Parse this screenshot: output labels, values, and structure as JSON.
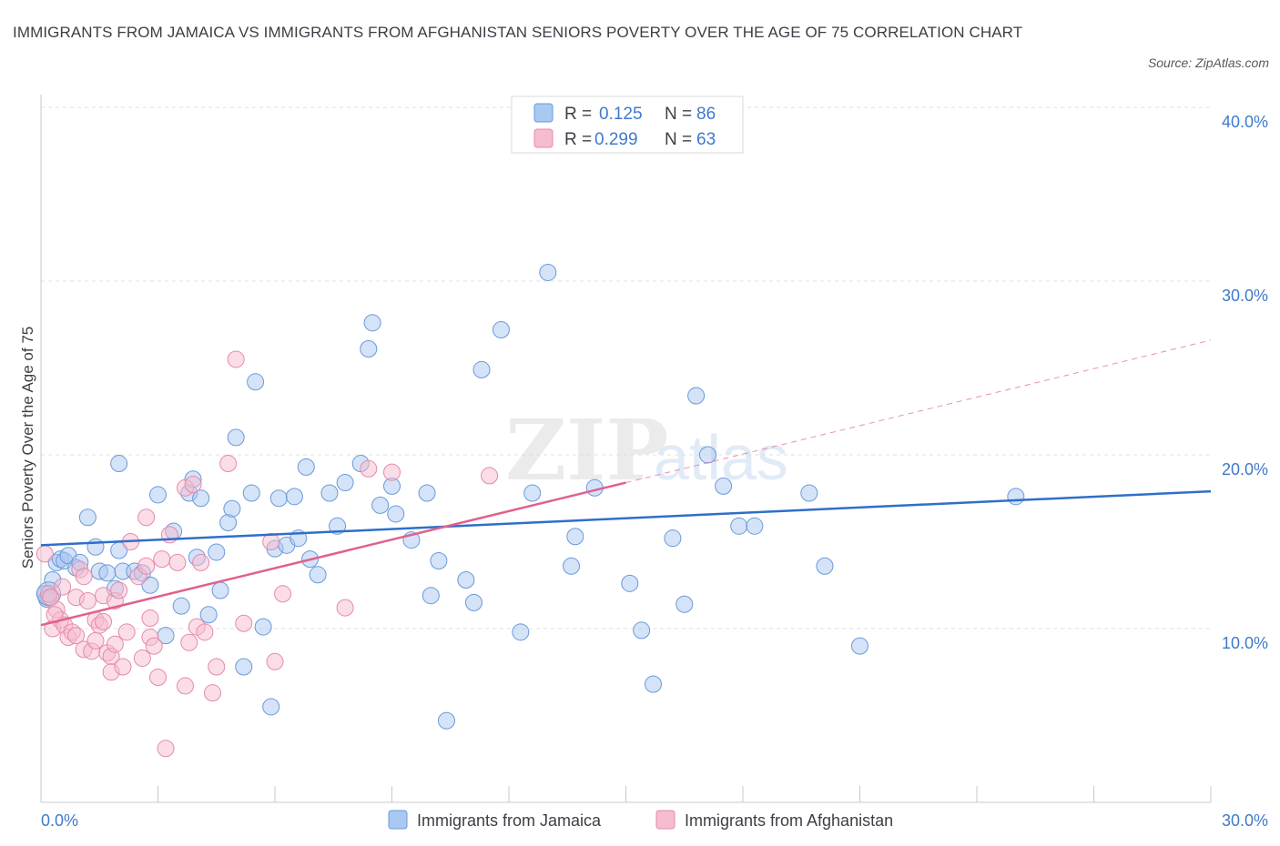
{
  "title": "IMMIGRANTS FROM JAMAICA VS IMMIGRANTS FROM AFGHANISTAN SENIORS POVERTY OVER THE AGE OF 75 CORRELATION CHART",
  "source": "Source: ZipAtlas.com",
  "legend": {
    "r_label": "R =",
    "n_label": "N =",
    "rows": [
      {
        "r": "0.125",
        "n": "86",
        "color": "#a9c8f2"
      },
      {
        "r": "0.299",
        "n": "63",
        "color": "#f6bccf"
      }
    ]
  },
  "chart_data": {
    "type": "scatter",
    "title": "IMMIGRANTS FROM JAMAICA VS IMMIGRANTS FROM AFGHANISTAN SENIORS POVERTY OVER THE AGE OF 75 CORRELATION CHART",
    "xlabel": "",
    "ylabel": "Seniors Poverty Over the Age of 75",
    "xlim": [
      0,
      30
    ],
    "ylim": [
      0,
      40
    ],
    "y_ticks": [
      "10.0%",
      "20.0%",
      "30.0%",
      "40.0%"
    ],
    "y_tick_values": [
      10,
      20,
      30,
      40
    ],
    "x_ticks": [
      "0.0%",
      "30.0%"
    ],
    "x_tick_values": [
      0,
      30
    ],
    "grid": true,
    "legend_position": "top-center",
    "watermark": "ZIPatlas",
    "series": [
      {
        "name": "Immigrants from Jamaica",
        "color": "#a9c8f2",
        "stroke": "#6a9ad8",
        "line_color": "#2f6fc8",
        "trend": {
          "x": [
            0,
            30
          ],
          "y": [
            14.8,
            17.9
          ],
          "dashed_after": null
        },
        "points": [
          [
            0.1,
            12.0
          ],
          [
            0.2,
            11.8
          ],
          [
            0.3,
            12.8
          ],
          [
            0.4,
            13.8
          ],
          [
            0.5,
            14.0
          ],
          [
            0.6,
            13.9
          ],
          [
            0.7,
            14.2
          ],
          [
            0.9,
            13.5
          ],
          [
            1.2,
            16.4
          ],
          [
            1.4,
            14.7
          ],
          [
            1.5,
            13.3
          ],
          [
            1.7,
            13.2
          ],
          [
            1.9,
            12.3
          ],
          [
            2.0,
            19.5
          ],
          [
            2.0,
            14.5
          ],
          [
            2.1,
            13.3
          ],
          [
            2.4,
            13.3
          ],
          [
            2.6,
            13.2
          ],
          [
            2.8,
            12.5
          ],
          [
            3.0,
            17.7
          ],
          [
            3.2,
            9.6
          ],
          [
            3.4,
            15.6
          ],
          [
            3.6,
            11.3
          ],
          [
            3.8,
            17.8
          ],
          [
            3.9,
            18.6
          ],
          [
            4.0,
            14.1
          ],
          [
            4.1,
            17.5
          ],
          [
            4.3,
            10.8
          ],
          [
            4.5,
            14.4
          ],
          [
            4.6,
            12.2
          ],
          [
            4.8,
            16.1
          ],
          [
            4.9,
            16.9
          ],
          [
            5.0,
            21.0
          ],
          [
            5.2,
            7.8
          ],
          [
            5.4,
            17.8
          ],
          [
            5.5,
            24.2
          ],
          [
            5.7,
            10.1
          ],
          [
            5.9,
            5.5
          ],
          [
            6.0,
            14.6
          ],
          [
            6.1,
            17.5
          ],
          [
            6.3,
            14.8
          ],
          [
            6.5,
            17.6
          ],
          [
            6.6,
            15.2
          ],
          [
            6.8,
            19.3
          ],
          [
            6.9,
            14.0
          ],
          [
            7.1,
            13.1
          ],
          [
            7.4,
            17.8
          ],
          [
            7.6,
            15.9
          ],
          [
            7.8,
            18.4
          ],
          [
            8.2,
            19.5
          ],
          [
            8.4,
            26.1
          ],
          [
            8.5,
            27.6
          ],
          [
            8.7,
            17.1
          ],
          [
            9.0,
            18.2
          ],
          [
            9.1,
            16.6
          ],
          [
            9.5,
            15.1
          ],
          [
            9.9,
            17.8
          ],
          [
            10.0,
            11.9
          ],
          [
            10.2,
            13.9
          ],
          [
            10.4,
            4.7
          ],
          [
            10.9,
            12.8
          ],
          [
            11.1,
            11.5
          ],
          [
            11.3,
            24.9
          ],
          [
            11.8,
            27.2
          ],
          [
            12.3,
            9.8
          ],
          [
            12.6,
            17.8
          ],
          [
            13.0,
            30.5
          ],
          [
            13.6,
            13.6
          ],
          [
            13.7,
            15.3
          ],
          [
            14.2,
            18.1
          ],
          [
            15.1,
            12.6
          ],
          [
            15.4,
            9.9
          ],
          [
            15.7,
            6.8
          ],
          [
            16.2,
            15.2
          ],
          [
            16.5,
            11.4
          ],
          [
            16.8,
            23.4
          ],
          [
            17.1,
            20.0
          ],
          [
            17.5,
            18.2
          ],
          [
            17.9,
            15.9
          ],
          [
            18.3,
            15.9
          ],
          [
            19.7,
            17.8
          ],
          [
            20.1,
            13.6
          ],
          [
            21.0,
            9.0
          ],
          [
            25.0,
            17.6
          ],
          [
            0.15,
            11.7
          ],
          [
            1.0,
            13.8
          ]
        ]
      },
      {
        "name": "Immigrants from Afghanistan",
        "color": "#f6bccf",
        "stroke": "#e58aa9",
        "line_color": "#e0608e",
        "trend": {
          "x": [
            0,
            15
          ],
          "y": [
            10.2,
            18.4
          ],
          "dashed_until": [
            30,
            26.6
          ]
        },
        "points": [
          [
            0.1,
            14.3
          ],
          [
            0.2,
            12.0
          ],
          [
            0.3,
            10.0
          ],
          [
            0.4,
            11.1
          ],
          [
            0.5,
            10.5
          ],
          [
            0.6,
            10.2
          ],
          [
            0.7,
            9.5
          ],
          [
            0.8,
            9.8
          ],
          [
            0.9,
            9.6
          ],
          [
            0.9,
            11.8
          ],
          [
            1.0,
            13.4
          ],
          [
            1.1,
            13.0
          ],
          [
            1.2,
            11.6
          ],
          [
            1.1,
            8.8
          ],
          [
            1.3,
            8.7
          ],
          [
            1.4,
            10.5
          ],
          [
            1.4,
            9.3
          ],
          [
            1.5,
            10.2
          ],
          [
            1.6,
            11.9
          ],
          [
            1.6,
            10.4
          ],
          [
            1.7,
            8.6
          ],
          [
            1.8,
            8.4
          ],
          [
            1.8,
            7.5
          ],
          [
            1.9,
            9.1
          ],
          [
            1.9,
            11.6
          ],
          [
            2.0,
            12.2
          ],
          [
            2.1,
            7.8
          ],
          [
            2.2,
            9.8
          ],
          [
            2.3,
            15.0
          ],
          [
            2.5,
            13.0
          ],
          [
            2.6,
            8.3
          ],
          [
            2.7,
            13.6
          ],
          [
            2.7,
            16.4
          ],
          [
            2.8,
            10.6
          ],
          [
            2.8,
            9.5
          ],
          [
            2.9,
            9.0
          ],
          [
            3.0,
            7.2
          ],
          [
            3.1,
            14.0
          ],
          [
            3.2,
            3.1
          ],
          [
            3.3,
            15.4
          ],
          [
            3.5,
            13.8
          ],
          [
            3.7,
            18.1
          ],
          [
            3.7,
            6.7
          ],
          [
            3.8,
            9.2
          ],
          [
            3.9,
            18.3
          ],
          [
            4.0,
            10.1
          ],
          [
            4.1,
            13.8
          ],
          [
            4.2,
            9.8
          ],
          [
            4.4,
            6.3
          ],
          [
            4.5,
            7.8
          ],
          [
            4.8,
            19.5
          ],
          [
            5.0,
            25.5
          ],
          [
            5.2,
            10.3
          ],
          [
            5.9,
            15.0
          ],
          [
            6.0,
            8.1
          ],
          [
            6.2,
            12.0
          ],
          [
            7.8,
            11.2
          ],
          [
            8.4,
            19.2
          ],
          [
            9.0,
            19.0
          ],
          [
            11.5,
            18.8
          ],
          [
            0.25,
            11.8
          ],
          [
            0.35,
            10.8
          ],
          [
            0.55,
            12.4
          ]
        ]
      }
    ]
  },
  "bottom_legend": [
    {
      "label": "Immigrants from Jamaica",
      "color": "#a9c8f2"
    },
    {
      "label": "Immigrants from Afghanistan",
      "color": "#f6bccf"
    }
  ]
}
